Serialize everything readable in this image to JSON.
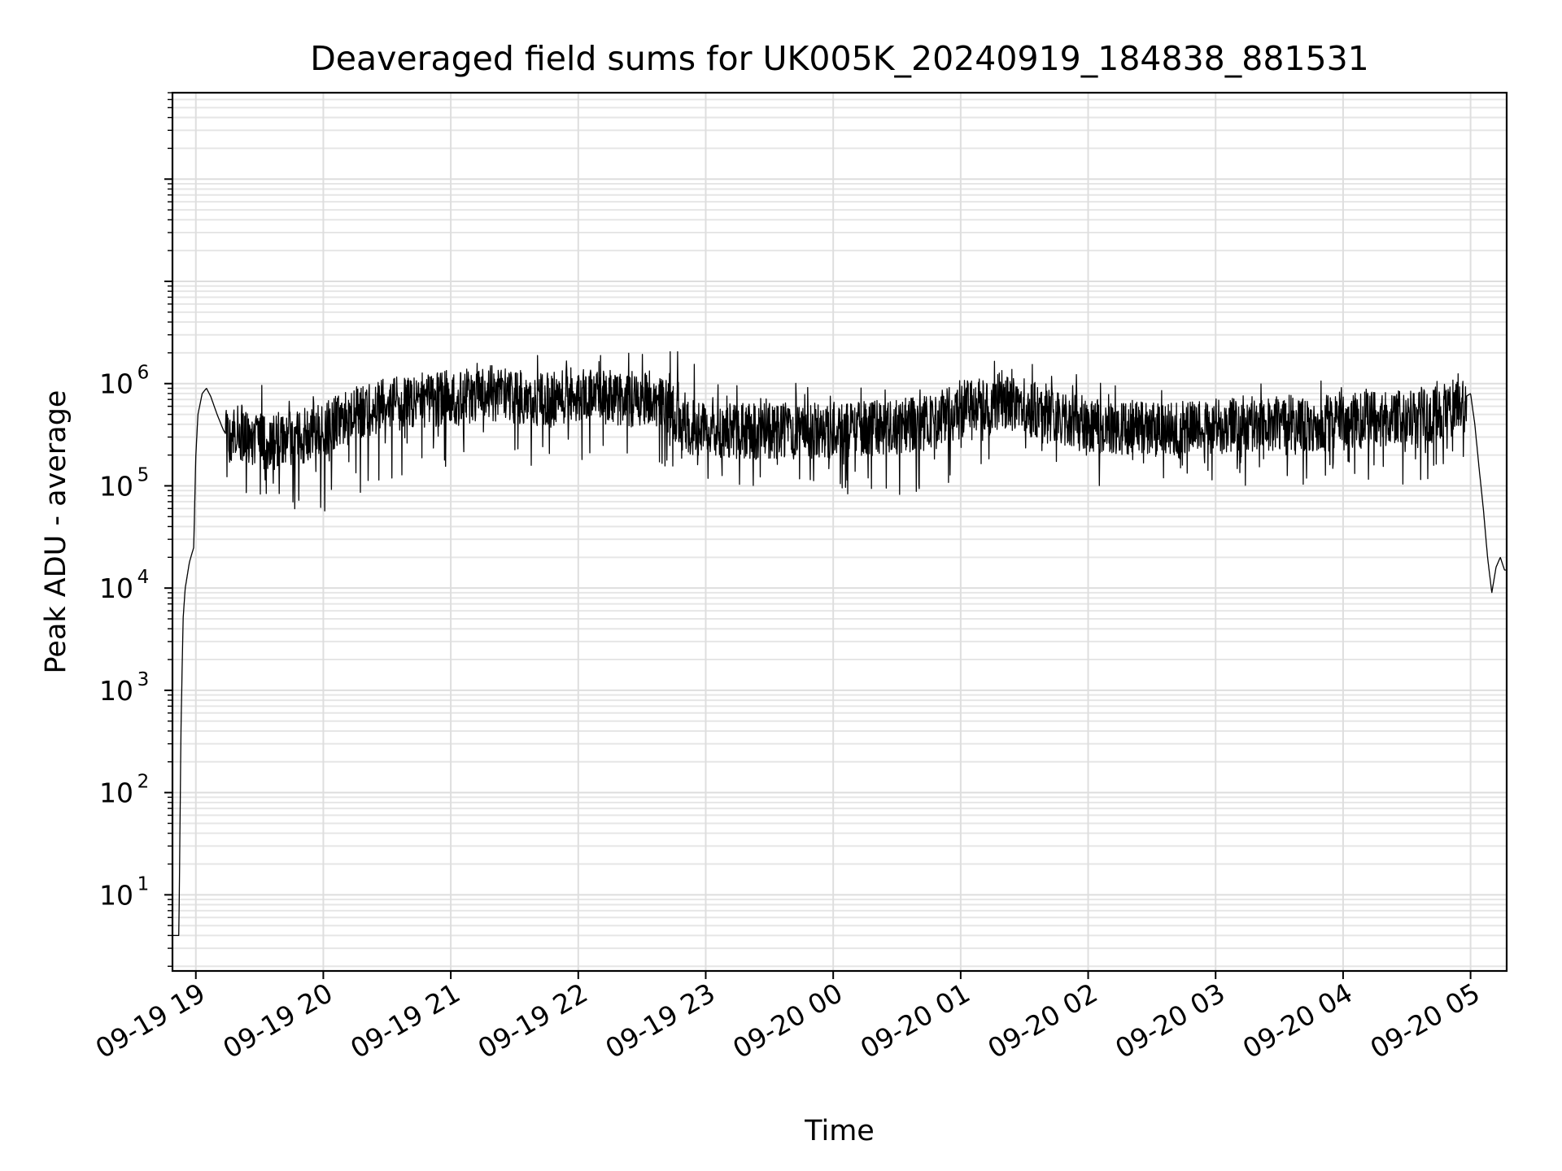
{
  "chart_data": {
    "type": "line",
    "title": "Deaveraged field sums for UK005K_20240919_184838_881531",
    "xlabel": "Time",
    "ylabel": "Peak ADU - average",
    "yscale": "log",
    "ylim": [
      1.8,
      700000000
    ],
    "xlim": [
      "2024-09-19 18:49",
      "2024-09-20 05:17"
    ],
    "grid": "major and minor",
    "line_color": "#000000",
    "xticks": [
      {
        "label": "09-19 19",
        "time": "2024-09-19 19:00"
      },
      {
        "label": "09-19 20",
        "time": "2024-09-19 20:00"
      },
      {
        "label": "09-19 21",
        "time": "2024-09-19 21:00"
      },
      {
        "label": "09-19 22",
        "time": "2024-09-19 22:00"
      },
      {
        "label": "09-19 23",
        "time": "2024-09-19 23:00"
      },
      {
        "label": "09-20 00",
        "time": "2024-09-20 00:00"
      },
      {
        "label": "09-20 01",
        "time": "2024-09-20 01:00"
      },
      {
        "label": "09-20 02",
        "time": "2024-09-20 02:00"
      },
      {
        "label": "09-20 03",
        "time": "2024-09-20 03:00"
      },
      {
        "label": "09-20 04",
        "time": "2024-09-20 04:00"
      },
      {
        "label": "09-20 05",
        "time": "2024-09-20 05:00"
      }
    ],
    "yticks": [
      {
        "base": "10",
        "exp": "1",
        "value": 10
      },
      {
        "base": "10",
        "exp": "2",
        "value": 100
      },
      {
        "base": "10",
        "exp": "3",
        "value": 1000
      },
      {
        "base": "10",
        "exp": "4",
        "value": 10000
      },
      {
        "base": "10",
        "exp": "5",
        "value": 100000
      },
      {
        "base": "10",
        "exp": "6",
        "value": 1000000
      }
    ],
    "series": [
      {
        "x": [
          "2024-09-19 18:49",
          "2024-09-19 18:51",
          "2024-09-19 18:52",
          "2024-09-19 18:53",
          "2024-09-19 18:54",
          "2024-09-19 18:55",
          "2024-09-19 18:57",
          "2024-09-19 18:59",
          "2024-09-19 19:00",
          "2024-09-19 19:01",
          "2024-09-19 19:03",
          "2024-09-19 19:05",
          "2024-09-19 19:07",
          "2024-09-19 19:10",
          "2024-09-19 19:13",
          "2024-09-19 19:15",
          "2024-09-19 19:20",
          "2024-09-19 19:25",
          "2024-09-19 19:30",
          "2024-09-19 19:35",
          "2024-09-19 19:40",
          "2024-09-19 19:45",
          "2024-09-19 19:50",
          "2024-09-19 19:55",
          "2024-09-19 20:00",
          "2024-09-19 20:05",
          "2024-09-19 20:10",
          "2024-09-19 20:15",
          "2024-09-19 20:20",
          "2024-09-19 20:25",
          "2024-09-19 20:30",
          "2024-09-19 20:35",
          "2024-09-19 20:40",
          "2024-09-19 20:45",
          "2024-09-19 20:50",
          "2024-09-19 20:55",
          "2024-09-19 21:00",
          "2024-09-19 21:10",
          "2024-09-19 21:20",
          "2024-09-19 21:30",
          "2024-09-19 21:40",
          "2024-09-19 21:50",
          "2024-09-19 22:00",
          "2024-09-19 22:10",
          "2024-09-19 22:20",
          "2024-09-19 22:30",
          "2024-09-19 22:40",
          "2024-09-19 22:50",
          "2024-09-19 23:00",
          "2024-09-19 23:15",
          "2024-09-19 23:30",
          "2024-09-19 23:45",
          "2024-09-20 00:00",
          "2024-09-20 00:15",
          "2024-09-20 00:30",
          "2024-09-20 00:45",
          "2024-09-20 01:00",
          "2024-09-20 01:15",
          "2024-09-20 01:30",
          "2024-09-20 01:45",
          "2024-09-20 02:00",
          "2024-09-20 02:15",
          "2024-09-20 02:30",
          "2024-09-20 02:45",
          "2024-09-20 03:00",
          "2024-09-20 03:15",
          "2024-09-20 03:30",
          "2024-09-20 03:45",
          "2024-09-20 04:00",
          "2024-09-20 04:15",
          "2024-09-20 04:30",
          "2024-09-20 04:45",
          "2024-09-20 05:00",
          "2024-09-20 05:02",
          "2024-09-20 05:04",
          "2024-09-20 05:06",
          "2024-09-20 05:08",
          "2024-09-20 05:10",
          "2024-09-20 05:12",
          "2024-09-20 05:14",
          "2024-09-20 05:16"
        ],
        "y": [
          4,
          4,
          4,
          400,
          5000,
          10000,
          18000,
          25000,
          200000,
          500000,
          800000,
          900000,
          750000,
          500000,
          350000,
          300000,
          350000,
          300000,
          280000,
          250000,
          300000,
          280000,
          300000,
          320000,
          350000,
          400000,
          450000,
          500000,
          550000,
          600000,
          650000,
          650000,
          700000,
          700000,
          700000,
          700000,
          700000,
          750000,
          800000,
          750000,
          700000,
          700000,
          800000,
          750000,
          700000,
          700000,
          650000,
          400000,
          350000,
          340000,
          350000,
          340000,
          350000,
          360000,
          380000,
          400000,
          550000,
          700000,
          600000,
          450000,
          400000,
          380000,
          350000,
          340000,
          380000,
          400000,
          420000,
          400000,
          420000,
          450000,
          480000,
          500000,
          800000,
          400000,
          150000,
          60000,
          20000,
          9000,
          16000,
          20000,
          15000
        ]
      }
    ],
    "spike_envelope": {
      "x": [
        "2024-09-19 19:20",
        "2024-09-19 19:35",
        "2024-09-19 19:50",
        "2024-09-19 20:05",
        "2024-09-19 20:20",
        "2024-09-19 20:35",
        "2024-09-19 20:50",
        "2024-09-19 21:05",
        "2024-09-19 21:20",
        "2024-09-19 21:35",
        "2024-09-19 21:50",
        "2024-09-19 22:05",
        "2024-09-19 22:20",
        "2024-09-19 22:35",
        "2024-09-19 22:50",
        "2024-09-19 23:05",
        "2024-09-19 23:20",
        "2024-09-19 23:35",
        "2024-09-19 23:50",
        "2024-09-20 00:05",
        "2024-09-20 00:20",
        "2024-09-20 00:35",
        "2024-09-20 00:50",
        "2024-09-20 01:05",
        "2024-09-20 01:20",
        "2024-09-20 01:35",
        "2024-09-20 01:50",
        "2024-09-20 02:05",
        "2024-09-20 02:20",
        "2024-09-20 02:35",
        "2024-09-20 02:50",
        "2024-09-20 03:05",
        "2024-09-20 03:20",
        "2024-09-20 03:35",
        "2024-09-20 03:50",
        "2024-09-20 04:05",
        "2024-09-20 04:20",
        "2024-09-20 04:35",
        "2024-09-20 04:50"
      ],
      "high": [
        1000000,
        1100000,
        950000,
        900000,
        1000000,
        1100000,
        1300000,
        1400000,
        1900000,
        2000000,
        2000000,
        2200000,
        3000000,
        3200000,
        2000000,
        1100000,
        900000,
        1000000,
        1200000,
        1100000,
        1000000,
        1000000,
        1100000,
        1300000,
        2000000,
        1700000,
        1300000,
        1100000,
        1000000,
        900000,
        1000000,
        1000000,
        1000000,
        1100000,
        1100000,
        1000000,
        1100000,
        1300000,
        1200000
      ],
      "low": [
        80000,
        60000,
        50000,
        55000,
        80000,
        100000,
        150000,
        150000,
        120000,
        150000,
        120000,
        200000,
        150000,
        150000,
        100000,
        100000,
        100000,
        90000,
        90000,
        80000,
        80000,
        80000,
        100000,
        100000,
        180000,
        200000,
        120000,
        100000,
        100000,
        100000,
        100000,
        90000,
        100000,
        100000,
        100000,
        100000,
        100000,
        100000,
        120000
      ]
    }
  }
}
